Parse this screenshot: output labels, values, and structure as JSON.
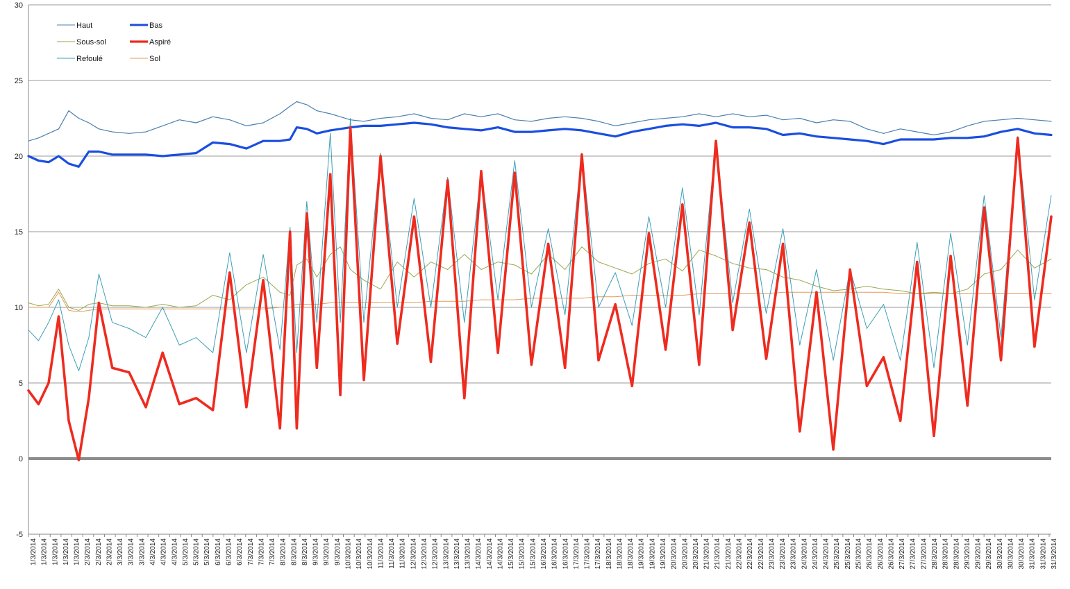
{
  "chart_data": {
    "type": "line",
    "ylim": [
      -5,
      30
    ],
    "y_ticks": [
      "-5",
      "0",
      "5",
      "10",
      "15",
      "20",
      "25",
      "30"
    ],
    "grid": "horizontal",
    "legend_position": "top-left",
    "x_tick_labels": [
      "1/3/2014",
      "1/3/2014",
      "1/3/2014",
      "1/3/2014",
      "1/3/2014",
      "2/3/2014",
      "2/3/2014",
      "2/3/2014",
      "3/3/2014",
      "3/3/2014",
      "3/3/2014",
      "4/3/2014",
      "4/3/2014",
      "4/3/2014",
      "5/3/2014",
      "5/3/2014",
      "5/3/2014",
      "6/3/2014",
      "6/3/2014",
      "6/3/2014",
      "7/3/2014",
      "7/3/2014",
      "7/3/2014",
      "8/3/2014",
      "8/3/2014",
      "8/3/2014",
      "9/3/2014",
      "9/3/2014",
      "9/3/2014",
      "10/3/2014",
      "10/3/2014",
      "10/3/2014",
      "11/3/2014",
      "11/3/2014",
      "11/3/2014",
      "12/3/2014",
      "12/3/2014",
      "12/3/2014",
      "13/3/2014",
      "13/3/2014",
      "13/3/2014",
      "14/3/2014",
      "14/3/2014",
      "14/3/2014",
      "15/3/2014",
      "15/3/2014",
      "15/3/2014",
      "16/3/2014",
      "16/3/2014",
      "16/3/2014",
      "17/3/2014",
      "17/3/2014",
      "17/3/2014",
      "18/3/2014",
      "18/3/2014",
      "18/3/2014",
      "19/3/2014",
      "19/3/2014",
      "19/3/2014",
      "20/3/2014",
      "20/3/2014",
      "20/3/2014",
      "21/3/2014",
      "21/3/2014",
      "21/3/2014",
      "22/3/2014",
      "22/3/2014",
      "22/3/2014",
      "23/3/2014",
      "23/3/2014",
      "23/3/2014",
      "24/3/2014",
      "24/3/2014",
      "24/3/2014",
      "25/3/2014",
      "25/3/2014",
      "25/3/2014",
      "26/3/2014",
      "26/3/2014",
      "26/3/2014",
      "27/3/2014",
      "27/3/2014",
      "27/3/2014",
      "28/3/2014",
      "28/3/2014",
      "28/3/2014",
      "29/3/2014",
      "29/3/2014",
      "29/3/2014",
      "30/3/2014",
      "30/3/2014",
      "30/3/2014",
      "31/3/2014",
      "31/3/2014",
      "31/3/2014"
    ],
    "x_range_days": [
      0,
      30.5
    ],
    "series": [
      {
        "name": "Haut",
        "color": "#4a7fb0",
        "stroke": 1.2,
        "x": [
          0,
          0.3,
          0.6,
          0.9,
          1.2,
          1.5,
          1.8,
          2.1,
          2.5,
          3,
          3.5,
          4,
          4.5,
          5,
          5.5,
          6,
          6.5,
          7,
          7.5,
          7.8,
          8,
          8.3,
          8.6,
          9,
          9.3,
          9.6,
          10,
          10.5,
          11,
          11.5,
          12,
          12.5,
          13,
          13.5,
          14,
          14.5,
          15,
          15.5,
          16,
          16.5,
          17,
          17.5,
          18,
          18.5,
          19,
          19.5,
          20,
          20.5,
          21,
          21.5,
          22,
          22.5,
          23,
          23.5,
          24,
          24.5,
          25,
          25.5,
          26,
          26.5,
          27,
          27.5,
          28,
          28.5,
          29,
          29.5,
          30,
          30.5
        ],
        "y": [
          21,
          21.2,
          21.5,
          21.8,
          23,
          22.5,
          22.2,
          21.8,
          21.6,
          21.5,
          21.6,
          22,
          22.4,
          22.2,
          22.6,
          22.4,
          22,
          22.2,
          22.8,
          23.3,
          23.6,
          23.4,
          23,
          22.8,
          22.6,
          22.4,
          22.3,
          22.5,
          22.6,
          22.8,
          22.5,
          22.4,
          22.8,
          22.6,
          22.8,
          22.4,
          22.3,
          22.5,
          22.6,
          22.5,
          22.3,
          22,
          22.2,
          22.4,
          22.5,
          22.6,
          22.8,
          22.6,
          22.8,
          22.6,
          22.7,
          22.4,
          22.5,
          22.2,
          22.4,
          22.3,
          21.8,
          21.5,
          21.8,
          21.6,
          21.4,
          21.6,
          22,
          22.3,
          22.4,
          22.5,
          22.4,
          22.3
        ]
      },
      {
        "name": "Bas",
        "color": "#1a4ee0",
        "stroke": 3.2,
        "x": [
          0,
          0.3,
          0.6,
          0.9,
          1.2,
          1.5,
          1.8,
          2.1,
          2.5,
          3,
          3.5,
          4,
          4.5,
          5,
          5.5,
          6,
          6.5,
          7,
          7.5,
          7.8,
          8,
          8.3,
          8.6,
          9,
          9.3,
          9.6,
          10,
          10.5,
          11,
          11.5,
          12,
          12.5,
          13,
          13.5,
          14,
          14.5,
          15,
          15.5,
          16,
          16.5,
          17,
          17.5,
          18,
          18.5,
          19,
          19.5,
          20,
          20.5,
          21,
          21.5,
          22,
          22.5,
          23,
          23.5,
          24,
          24.5,
          25,
          25.5,
          26,
          26.5,
          27,
          27.5,
          28,
          28.5,
          29,
          29.5,
          30,
          30.5
        ],
        "y": [
          20,
          19.7,
          19.6,
          20,
          19.5,
          19.3,
          20.3,
          20.3,
          20.1,
          20.1,
          20.1,
          20,
          20.1,
          20.2,
          20.9,
          20.8,
          20.5,
          21,
          21,
          21.1,
          21.9,
          21.8,
          21.5,
          21.7,
          21.8,
          21.9,
          22,
          22,
          22.1,
          22.2,
          22.1,
          21.9,
          21.8,
          21.7,
          21.9,
          21.6,
          21.6,
          21.7,
          21.8,
          21.7,
          21.5,
          21.3,
          21.6,
          21.8,
          22,
          22.1,
          22,
          22.2,
          21.9,
          21.9,
          21.8,
          21.4,
          21.5,
          21.3,
          21.2,
          21.1,
          21,
          20.8,
          21.1,
          21.1,
          21.1,
          21.2,
          21.2,
          21.3,
          21.6,
          21.8,
          21.5,
          21.4
        ]
      },
      {
        "name": "Sous-sol",
        "color": "#9aa84e",
        "stroke": 1.0,
        "x": [
          0,
          0.3,
          0.6,
          0.9,
          1.2,
          1.5,
          1.8,
          2.1,
          2.5,
          3,
          3.5,
          4,
          4.5,
          5,
          5.5,
          6,
          6.5,
          7,
          7.5,
          7.8,
          8,
          8.3,
          8.6,
          9,
          9.3,
          9.6,
          10,
          10.5,
          11,
          11.5,
          12,
          12.5,
          13,
          13.5,
          14,
          14.5,
          15,
          15.5,
          16,
          16.5,
          17,
          17.5,
          18,
          18.5,
          19,
          19.5,
          20,
          20.5,
          21,
          21.5,
          22,
          22.5,
          23,
          23.5,
          24,
          24.5,
          25,
          25.5,
          26,
          26.5,
          27,
          27.5,
          28,
          28.5,
          29,
          29.5,
          30,
          30.5
        ],
        "y": [
          10.3,
          10.1,
          10.2,
          11.2,
          10,
          9.8,
          10.2,
          10.3,
          10.1,
          10.1,
          10,
          10.2,
          10,
          10.1,
          10.8,
          10.5,
          11.5,
          12,
          11,
          10.8,
          12.8,
          13.2,
          12,
          13.5,
          14,
          12.5,
          11.8,
          11.2,
          13,
          12,
          13,
          12.5,
          13.5,
          12.5,
          13,
          12.8,
          12.2,
          13.5,
          12.5,
          14,
          13,
          12.6,
          12.2,
          12.9,
          13.2,
          12.4,
          13.8,
          13.4,
          12.9,
          12.6,
          12.5,
          12,
          11.8,
          11.4,
          11.1,
          11.2,
          11.4,
          11.2,
          11.1,
          10.9,
          11,
          10.9,
          11.2,
          12.2,
          12.5,
          13.8,
          12.6,
          13.2
        ]
      },
      {
        "name": "Aspiré",
        "color": "#ee2b1f",
        "stroke": 3.6,
        "x": [
          0,
          0.3,
          0.6,
          0.9,
          1.2,
          1.5,
          1.8,
          2.1,
          2.5,
          3,
          3.5,
          4,
          4.5,
          5,
          5.5,
          6,
          6.5,
          7,
          7.5,
          7.8,
          8,
          8.3,
          8.6,
          9,
          9.3,
          9.6,
          10,
          10.5,
          11,
          11.5,
          12,
          12.5,
          13,
          13.5,
          14,
          14.5,
          15,
          15.5,
          16,
          16.5,
          17,
          17.5,
          18,
          18.5,
          19,
          19.5,
          20,
          20.5,
          21,
          21.5,
          22,
          22.5,
          23,
          23.5,
          24,
          24.5,
          25,
          25.5,
          26,
          26.5,
          27,
          27.5,
          28,
          28.5,
          29,
          29.5,
          30,
          30.5
        ],
        "y": [
          4.5,
          3.6,
          5,
          9.4,
          2.5,
          -0.1,
          4,
          10.3,
          6,
          5.7,
          3.4,
          7,
          3.6,
          4,
          3.2,
          12.3,
          3.4,
          11.8,
          2,
          15,
          2,
          16.2,
          6,
          18.8,
          4.2,
          21.9,
          5.2,
          20,
          7.6,
          16,
          6.4,
          18.4,
          4,
          19,
          7,
          18.9,
          6.2,
          14.2,
          6,
          20.1,
          6.5,
          10.2,
          4.8,
          14.9,
          7.2,
          16.8,
          6.2,
          21,
          8.5,
          15.6,
          6.6,
          14.2,
          1.8,
          11,
          0.6,
          12.5,
          4.8,
          6.7,
          2.5,
          13,
          1.5,
          13.4,
          3.5,
          16.6,
          6.5,
          21.2,
          7.4,
          16
        ]
      },
      {
        "name": "Refoulé",
        "color": "#3d9fb6",
        "stroke": 1.0,
        "x": [
          0,
          0.3,
          0.6,
          0.9,
          1.2,
          1.5,
          1.8,
          2.1,
          2.5,
          3,
          3.5,
          4,
          4.5,
          5,
          5.5,
          6,
          6.5,
          7,
          7.5,
          7.8,
          8,
          8.3,
          8.6,
          9,
          9.3,
          9.6,
          10,
          10.5,
          11,
          11.5,
          12,
          12.5,
          13,
          13.5,
          14,
          14.5,
          15,
          15.5,
          16,
          16.5,
          17,
          17.5,
          18,
          18.5,
          19,
          19.5,
          20,
          20.5,
          21,
          21.5,
          22,
          22.5,
          23,
          23.5,
          24,
          24.5,
          25,
          25.5,
          26,
          26.5,
          27,
          27.5,
          28,
          28.5,
          29,
          29.5,
          30,
          30.5
        ],
        "y": [
          8.5,
          7.8,
          9,
          10.5,
          7.5,
          5.8,
          8,
          12.2,
          9,
          8.6,
          8,
          10,
          7.5,
          8,
          7,
          13.6,
          7,
          13.5,
          7.2,
          15.3,
          7,
          17,
          9,
          21.5,
          9,
          22.5,
          9,
          20.2,
          10,
          17.2,
          10,
          18.6,
          9,
          19,
          10.5,
          19.7,
          10,
          15.2,
          9.5,
          20.2,
          10,
          12.3,
          8.8,
          16,
          10,
          17.9,
          9.5,
          21,
          10.3,
          16.5,
          9.6,
          15.2,
          7.5,
          12.5,
          6.5,
          12.5,
          8.6,
          10.2,
          6.5,
          14.3,
          6,
          14.9,
          7.5,
          17.4,
          8,
          21.3,
          10.5,
          17.4
        ]
      },
      {
        "name": "Sol",
        "color": "#e39a5a",
        "stroke": 1.0,
        "x": [
          0,
          0.3,
          0.6,
          0.9,
          1.2,
          1.5,
          1.8,
          2.1,
          2.5,
          3,
          3.5,
          4,
          4.5,
          5,
          5.5,
          6,
          6.5,
          7,
          7.5,
          7.8,
          8,
          8.3,
          8.6,
          9,
          9.3,
          9.6,
          10,
          10.5,
          11,
          11.5,
          12,
          12.5,
          13,
          13.5,
          14,
          14.5,
          15,
          15.5,
          16,
          16.5,
          17,
          17.5,
          18,
          18.5,
          19,
          19.5,
          20,
          20.5,
          21,
          21.5,
          22,
          22.5,
          23,
          23.5,
          24,
          24.5,
          25,
          25.5,
          26,
          26.5,
          27,
          27.5,
          28,
          28.5,
          29,
          29.5,
          30,
          30.5
        ],
        "y": [
          10,
          10,
          10,
          11,
          9.8,
          9.7,
          9.8,
          9.9,
          9.9,
          9.9,
          9.9,
          9.9,
          9.9,
          9.9,
          9.9,
          9.9,
          9.9,
          9.9,
          10,
          10,
          10.2,
          10.2,
          10.2,
          10.3,
          10.3,
          10.3,
          10.3,
          10.3,
          10.3,
          10.3,
          10.4,
          10.4,
          10.4,
          10.5,
          10.5,
          10.5,
          10.6,
          10.6,
          10.6,
          10.6,
          10.7,
          10.7,
          10.8,
          10.8,
          10.8,
          10.8,
          10.9,
          10.9,
          10.9,
          10.9,
          10.9,
          11,
          11,
          11,
          11,
          11,
          11,
          11,
          10.9,
          10.9,
          10.9,
          10.9,
          10.9,
          10.9,
          10.9,
          10.9,
          10.9,
          10.9
        ]
      }
    ]
  }
}
